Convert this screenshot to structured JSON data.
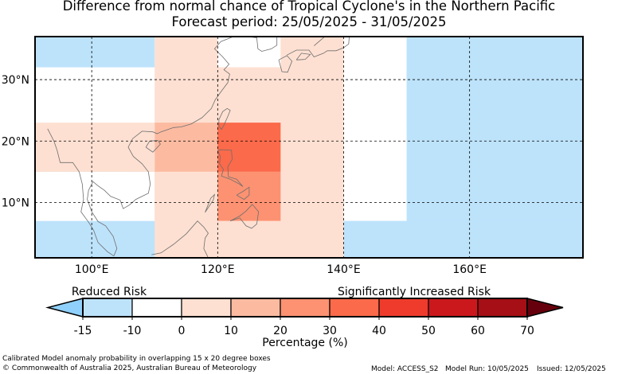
{
  "title": {
    "line1": "Difference from normal chance of Tropical Cyclone's in the Northern Pacific",
    "line2": "Forecast period: 25/05/2025 - 31/05/2025"
  },
  "map": {
    "lon_range": [
      91,
      178
    ],
    "lat_range": [
      1,
      37
    ],
    "lon_ticks": [
      100,
      120,
      140,
      160
    ],
    "lon_tick_labels": [
      "100°E",
      "120°E",
      "140°E",
      "160°E"
    ],
    "lat_ticks": [
      10,
      20,
      30
    ],
    "lat_tick_labels": [
      "10°N",
      "20°N",
      "30°N"
    ],
    "grid": true,
    "cells": [
      {
        "lon": [
          91,
          178
        ],
        "lat": [
          1,
          37
        ],
        "value": -12
      },
      {
        "lon": [
          91,
          110
        ],
        "lat": [
          22,
          32
        ],
        "value": -7
      },
      {
        "lon": [
          91,
          110
        ],
        "lat": [
          7,
          15
        ],
        "value": -7
      },
      {
        "lon": [
          91,
          110
        ],
        "lat": [
          15,
          23
        ],
        "value": 0
      },
      {
        "lon": [
          110,
          150
        ],
        "lat": [
          7,
          37
        ],
        "value": -7
      },
      {
        "lon": [
          150,
          178
        ],
        "lat": [
          1,
          37
        ],
        "value": -12
      },
      {
        "lon": [
          110,
          140
        ],
        "lat": [
          1,
          37
        ],
        "value": 0
      },
      {
        "lon": [
          120,
          130
        ],
        "lat": [
          32,
          37
        ],
        "value": -7
      },
      {
        "lon": [
          130,
          140
        ],
        "lat": [
          32,
          37
        ],
        "value": 0
      },
      {
        "lon": [
          120,
          130
        ],
        "lat": [
          23,
          32
        ],
        "value": 5
      },
      {
        "lon": [
          110,
          120
        ],
        "lat": [
          15,
          23
        ],
        "value": 15
      },
      {
        "lon": [
          110,
          120
        ],
        "lat": [
          7,
          15
        ],
        "value": 5
      },
      {
        "lon": [
          120,
          130
        ],
        "lat": [
          15,
          23
        ],
        "value": 35
      },
      {
        "lon": [
          120,
          130
        ],
        "lat": [
          7,
          15
        ],
        "value": 25
      },
      {
        "lon": [
          120,
          130
        ],
        "lat": [
          1,
          7
        ],
        "value": 5
      },
      {
        "lon": [
          130,
          140
        ],
        "lat": [
          7,
          23
        ],
        "value": 5
      },
      {
        "lon": [
          140,
          150
        ],
        "lat": [
          7,
          23
        ],
        "value": -7
      },
      {
        "lon": [
          140,
          178
        ],
        "lat": [
          1,
          7
        ],
        "value": -12
      }
    ]
  },
  "colorbar": {
    "levels": [
      -15,
      -10,
      0,
      10,
      20,
      30,
      40,
      50,
      60,
      70
    ],
    "tick_labels": [
      "-15",
      "-10",
      "0",
      "10",
      "20",
      "30",
      "40",
      "50",
      "60",
      "70"
    ],
    "colors": [
      "#bde3fb",
      "#ffffff",
      "#fee0d2",
      "#fcbba1",
      "#fc9272",
      "#fb6a4a",
      "#ef3b2c",
      "#cb181d",
      "#a50f15"
    ],
    "under_color": "#8fd1fc",
    "over_color": "#67000d",
    "label": "Percentage (%)",
    "left_annotation": "Reduced Risk",
    "right_annotation": "Significantly Increased Risk"
  },
  "coast_color": "#6e6e6e",
  "footer": {
    "line1": "Calibrated Model anomaly probability in overlapping 15 x 20 degree boxes",
    "line2": "© Commonwealth of Australia 2025, Australian Bureau of Meteorology",
    "model": "Model: ACCESS_S2",
    "run": "Model Run: 10/05/2025",
    "issued": "Issued: 12/05/2025"
  }
}
